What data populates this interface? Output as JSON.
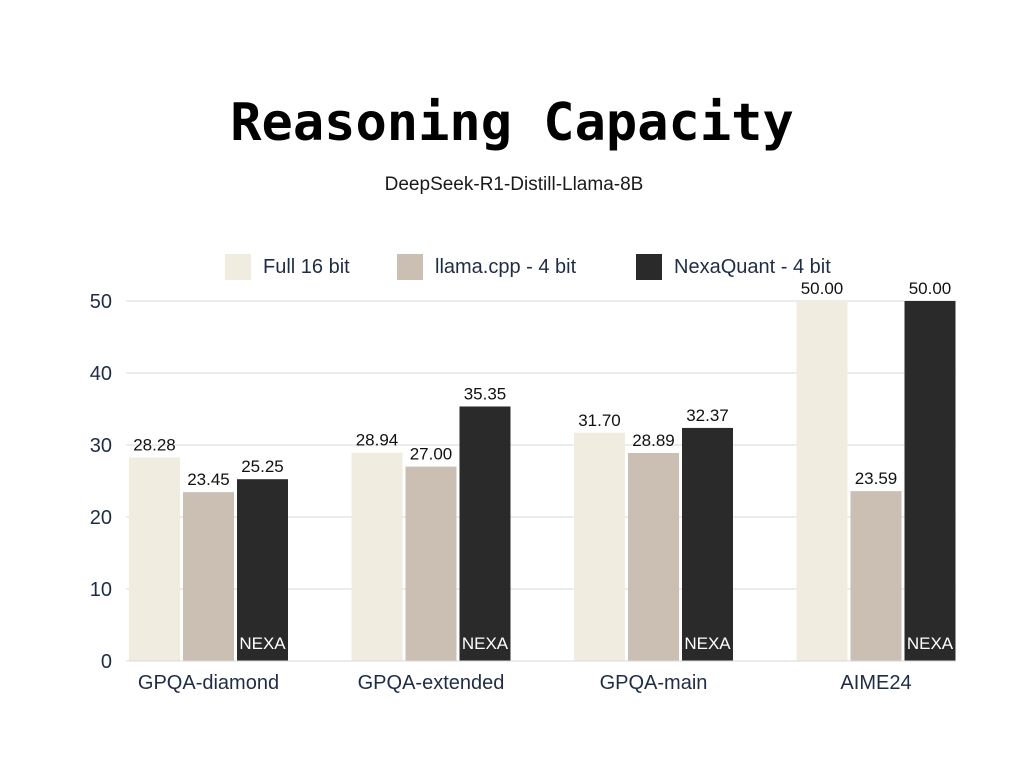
{
  "chart_data": {
    "type": "bar",
    "title": "Reasoning Capacity",
    "subtitle": "DeepSeek-R1-Distill-Llama-8B",
    "categories": [
      "GPQA-diamond",
      "GPQA-extended",
      "GPQA-main",
      "AIME24"
    ],
    "series": [
      {
        "name": "Full 16 bit",
        "color": "#f0ece0",
        "values": [
          28.28,
          28.94,
          31.7,
          50.0
        ],
        "labels": [
          "28.28",
          "28.94",
          "31.70",
          "50.00"
        ]
      },
      {
        "name": "llama.cpp - 4 bit",
        "color": "#cbbfb3",
        "values": [
          23.45,
          27.0,
          28.89,
          23.59
        ],
        "labels": [
          "23.45",
          "27.00",
          "28.89",
          "23.59"
        ]
      },
      {
        "name": "NexaQuant - 4 bit",
        "color": "#2a2a2a",
        "values": [
          25.25,
          35.35,
          32.37,
          50.0
        ],
        "labels": [
          "25.25",
          "35.35",
          "32.37",
          "50.00"
        ],
        "bar_text": "NEXA"
      }
    ],
    "ylim": [
      0,
      50
    ],
    "yticks": [
      0,
      10,
      20,
      30,
      40,
      50
    ],
    "xlabel": "",
    "ylabel": "",
    "grid": true,
    "legend_position": "top-center"
  },
  "colors": {
    "gridline": "#dadada",
    "axis_text": "#1f2d44"
  }
}
